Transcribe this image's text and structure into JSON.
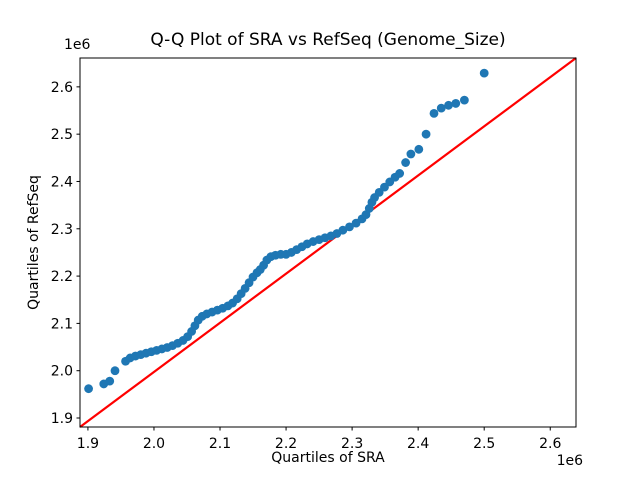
{
  "figure": {
    "background": "#ffffff"
  },
  "chart_data": {
    "type": "scatter",
    "title": "Q-Q Plot of SRA vs RefSeq (Genome_Size)",
    "xlabel": "Quartiles of SRA",
    "ylabel": "Quartiles of RefSeq",
    "x_offset_label": "1e6",
    "y_offset_label": "1e6",
    "units_multiplier": "1e6",
    "grid": false,
    "legend": "none",
    "marker_color": "#1f77b4",
    "line_color": "#ff0000",
    "frame_color": "#000000",
    "background": "#ffffff",
    "xlim": [
      1.888,
      2.639
    ],
    "ylim": [
      1.881,
      2.661
    ],
    "x_ticks": {
      "values": [
        1.9,
        2.0,
        2.1,
        2.2,
        2.3,
        2.4,
        2.5,
        2.6
      ],
      "labels": [
        "1.9",
        "2.0",
        "2.1",
        "2.2",
        "2.3",
        "2.4",
        "2.5",
        "2.6"
      ]
    },
    "y_ticks": {
      "values": [
        1.9,
        2.0,
        2.1,
        2.2,
        2.3,
        2.4,
        2.5,
        2.6
      ],
      "labels": [
        "1.9",
        "2.0",
        "2.1",
        "2.2",
        "2.3",
        "2.4",
        "2.5",
        "2.6"
      ]
    },
    "ref_line": {
      "x": [
        1.888,
        2.639
      ],
      "y": [
        1.881,
        2.661
      ]
    },
    "points": [
      [
        1.901,
        1.962
      ],
      [
        1.924,
        1.972
      ],
      [
        1.933,
        1.978
      ],
      [
        1.941,
        2.0
      ],
      [
        1.957,
        2.02
      ],
      [
        1.964,
        2.027
      ],
      [
        1.972,
        2.031
      ],
      [
        1.98,
        2.034
      ],
      [
        1.988,
        2.037
      ],
      [
        1.996,
        2.04
      ],
      [
        2.004,
        2.043
      ],
      [
        2.012,
        2.046
      ],
      [
        2.02,
        2.049
      ],
      [
        2.028,
        2.053
      ],
      [
        2.036,
        2.058
      ],
      [
        2.044,
        2.064
      ],
      [
        2.051,
        2.072
      ],
      [
        2.057,
        2.083
      ],
      [
        2.062,
        2.095
      ],
      [
        2.067,
        2.107
      ],
      [
        2.073,
        2.115
      ],
      [
        2.08,
        2.12
      ],
      [
        2.088,
        2.124
      ],
      [
        2.096,
        2.128
      ],
      [
        2.104,
        2.132
      ],
      [
        2.112,
        2.137
      ],
      [
        2.119,
        2.143
      ],
      [
        2.126,
        2.152
      ],
      [
        2.132,
        2.163
      ],
      [
        2.138,
        2.174
      ],
      [
        2.144,
        2.186
      ],
      [
        2.15,
        2.198
      ],
      [
        2.156,
        2.207
      ],
      [
        2.161,
        2.214
      ],
      [
        2.166,
        2.223
      ],
      [
        2.171,
        2.234
      ],
      [
        2.177,
        2.241
      ],
      [
        2.184,
        2.244
      ],
      [
        2.192,
        2.246
      ],
      [
        2.2,
        2.246
      ],
      [
        2.208,
        2.25
      ],
      [
        2.216,
        2.256
      ],
      [
        2.224,
        2.262
      ],
      [
        2.232,
        2.268
      ],
      [
        2.241,
        2.273
      ],
      [
        2.25,
        2.277
      ],
      [
        2.259,
        2.281
      ],
      [
        2.268,
        2.285
      ],
      [
        2.277,
        2.29
      ],
      [
        2.286,
        2.297
      ],
      [
        2.296,
        2.304
      ],
      [
        2.306,
        2.312
      ],
      [
        2.315,
        2.321
      ],
      [
        2.321,
        2.33
      ],
      [
        2.326,
        2.343
      ],
      [
        2.33,
        2.356
      ],
      [
        2.334,
        2.366
      ],
      [
        2.341,
        2.377
      ],
      [
        2.349,
        2.388
      ],
      [
        2.357,
        2.399
      ],
      [
        2.365,
        2.409
      ],
      [
        2.372,
        2.417
      ],
      [
        2.381,
        2.44
      ],
      [
        2.389,
        2.458
      ],
      [
        2.401,
        2.468
      ],
      [
        2.412,
        2.5
      ],
      [
        2.424,
        2.544
      ],
      [
        2.435,
        2.555
      ],
      [
        2.446,
        2.561
      ],
      [
        2.457,
        2.565
      ],
      [
        2.47,
        2.572
      ],
      [
        2.5,
        2.629
      ]
    ]
  }
}
